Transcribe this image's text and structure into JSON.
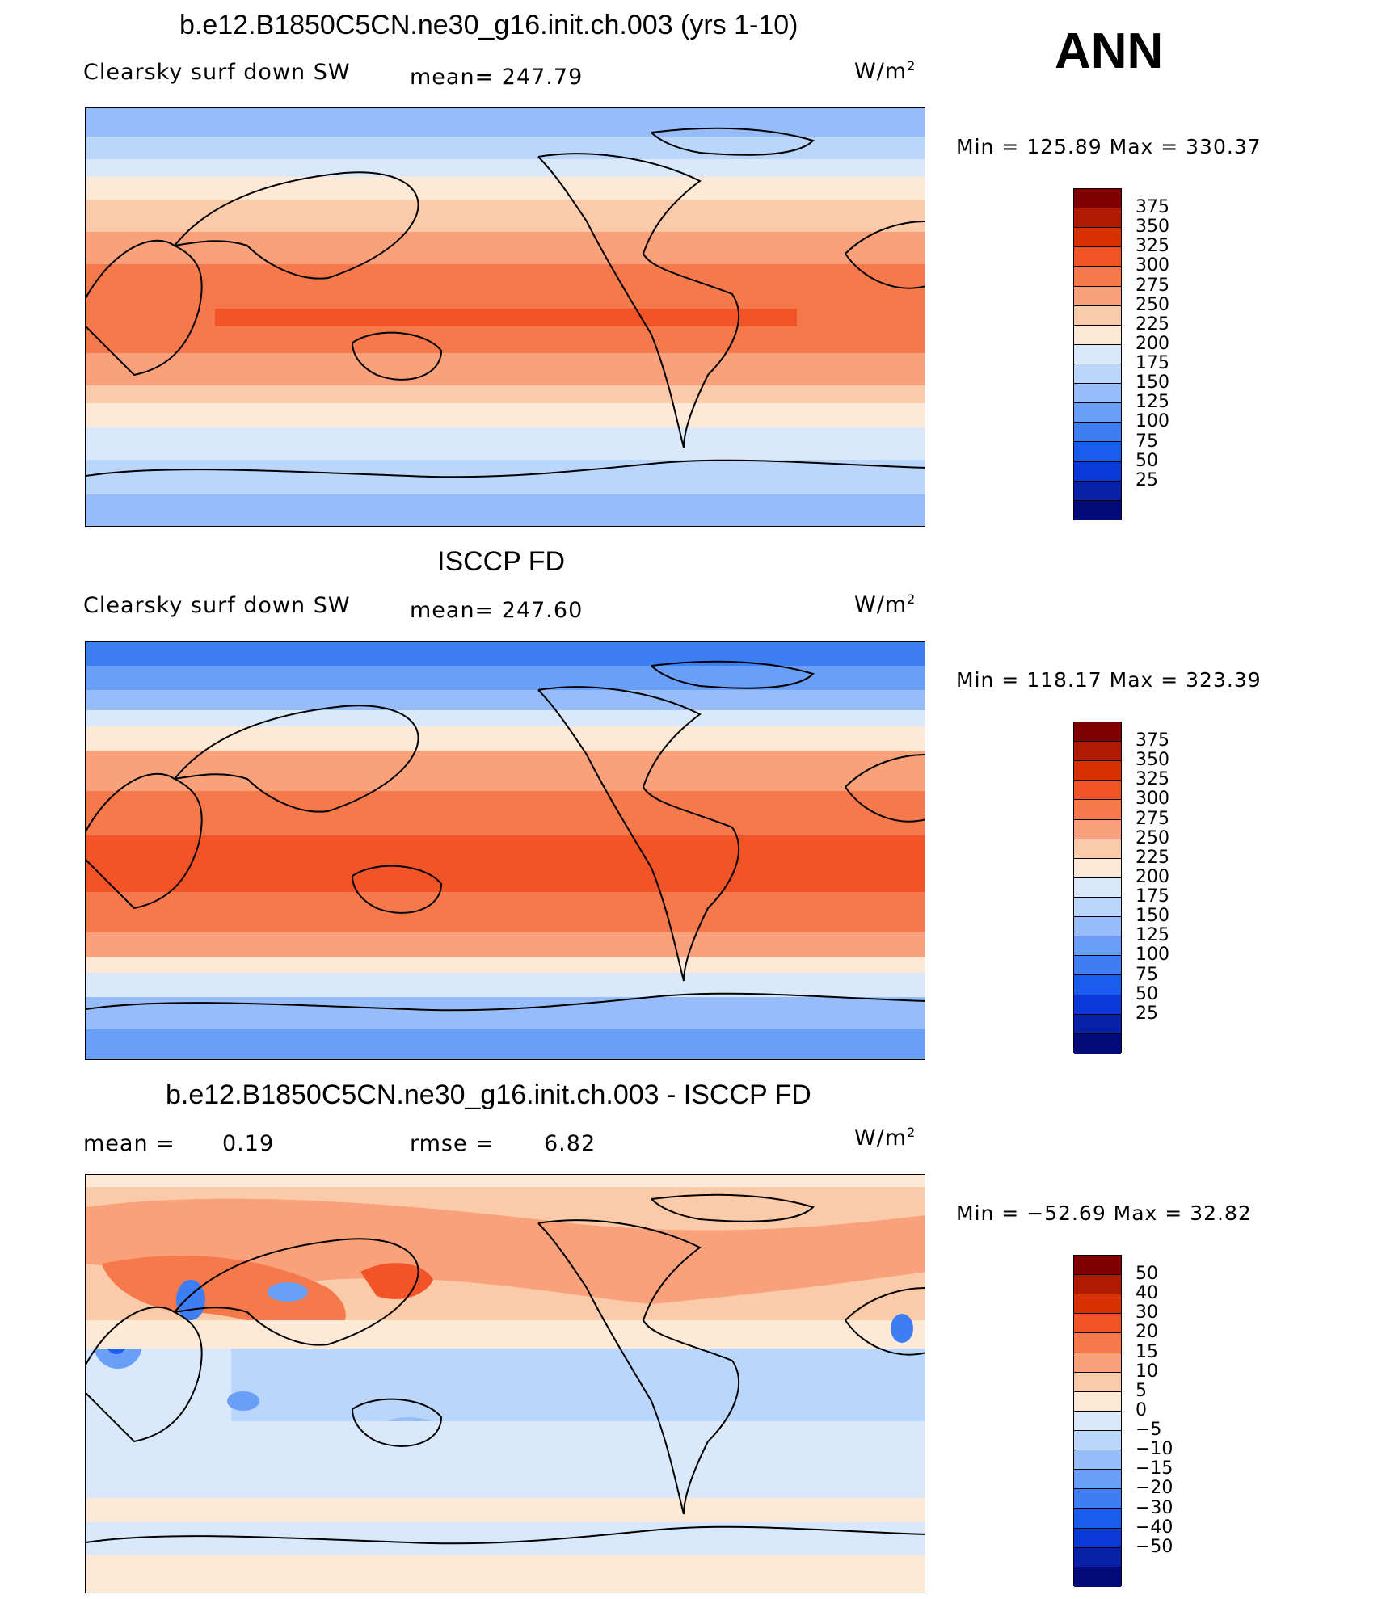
{
  "season": "ANN",
  "panels": [
    {
      "title": "b.e12.B1850C5CN.ne30_g16.init.ch.003 (yrs 1-10)",
      "variable": "Clearsky surf down SW",
      "stat_text": "mean= 247.79",
      "units": "W/m",
      "units_exp": "2",
      "minmax": "Min  =  125.89  Max  =  330.37",
      "colorbar": {
        "colors": [
          "#800000",
          "#b01a00",
          "#d83000",
          "#f25428",
          "#f5794a",
          "#f8a17a",
          "#fbcaa9",
          "#fde9d6",
          "#d9e9fb",
          "#bad6fb",
          "#96bcfa",
          "#6a9ff7",
          "#3d7ef5",
          "#1a5cf0",
          "#0a38d9",
          "#0620a8",
          "#020b78"
        ],
        "labels": [
          "375",
          "350",
          "325",
          "300",
          "275",
          "250",
          "225",
          "200",
          "175",
          "150",
          "125",
          "100",
          "75",
          "50",
          "25"
        ]
      }
    },
    {
      "title": "ISCCP FD",
      "variable": "Clearsky surf down SW",
      "stat_text": "mean= 247.60",
      "units": "W/m",
      "units_exp": "2",
      "minmax": "Min  =  118.17  Max  =  323.39",
      "colorbar": {
        "colors": [
          "#800000",
          "#b01a00",
          "#d83000",
          "#f25428",
          "#f5794a",
          "#f8a17a",
          "#fbcaa9",
          "#fde9d6",
          "#d9e9fb",
          "#bad6fb",
          "#96bcfa",
          "#6a9ff7",
          "#3d7ef5",
          "#1a5cf0",
          "#0a38d9",
          "#0620a8",
          "#020b78"
        ],
        "labels": [
          "375",
          "350",
          "325",
          "300",
          "275",
          "250",
          "225",
          "200",
          "175",
          "150",
          "125",
          "100",
          "75",
          "50",
          "25"
        ]
      }
    },
    {
      "title": "b.e12.B1850C5CN.ne30_g16.init.ch.003 - ISCCP FD",
      "mean_label": "mean  =",
      "mean_value": "0.19",
      "rmse_label": "rmse  =",
      "rmse_value": "6.82",
      "units": "W/m",
      "units_exp": "2",
      "minmax": "Min  =  −52.69  Max  =   32.82",
      "colorbar": {
        "colors": [
          "#800000",
          "#b01a00",
          "#d83000",
          "#f25428",
          "#f5794a",
          "#f8a17a",
          "#fbcaa9",
          "#fde9d6",
          "#d9e9fb",
          "#bad6fb",
          "#96bcfa",
          "#6a9ff7",
          "#3d7ef5",
          "#1a5cf0",
          "#0a38d9",
          "#0620a8",
          "#020b78"
        ],
        "labels": [
          "50",
          "40",
          "30",
          "20",
          "15",
          "10",
          "5",
          "0",
          "−5",
          "−10",
          "−15",
          "−20",
          "−30",
          "−40",
          "−50"
        ]
      }
    }
  ]
}
